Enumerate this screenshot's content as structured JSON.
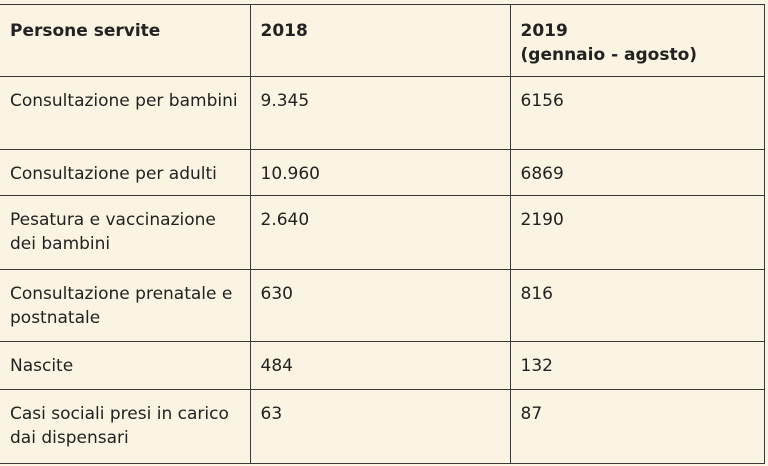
{
  "table": {
    "headers": {
      "col1": "Persone servite",
      "col2": "2018",
      "col3_line1": "2019",
      "col3_line2": "(gennaio - agosto)"
    },
    "rows": [
      {
        "label": "Consultazione per bambini",
        "y2018": "9.345",
        "y2019": "6156"
      },
      {
        "label": "Consultazione per adulti",
        "y2018": "10.960",
        "y2019": "6869"
      },
      {
        "label": "Pesatura e vaccinazione dei bambini",
        "y2018": "2.640",
        "y2019": "2190"
      },
      {
        "label": "Consultazione prenatale e postnatale",
        "y2018": "630",
        "y2019": "816"
      },
      {
        "label": "Nascite",
        "y2018": "484",
        "y2019": "132"
      },
      {
        "label": "Casi sociali presi in carico dai dispensari",
        "y2018": "63",
        "y2019": "87"
      }
    ]
  }
}
